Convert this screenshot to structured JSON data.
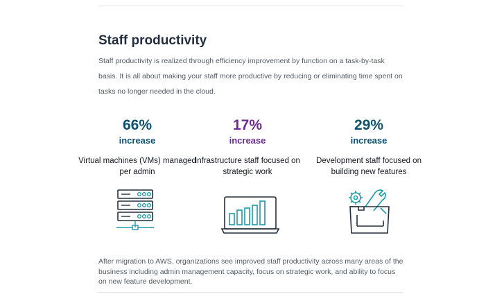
{
  "section": {
    "heading": "Staff productivity",
    "intro": "Staff productivity is realized through efficiency improvement by function on a task-by-task basis. It is all about making your staff more productive by reducing or eliminating time spent on tasks no longer needed in the cloud."
  },
  "stats": [
    {
      "value": "66%",
      "suffix": "increase",
      "description": "Virtual machines (VMs) managed per admin",
      "color": "#0e5271",
      "icon": "server-rack-icon"
    },
    {
      "value": "17%",
      "suffix": "increase",
      "description": "Infrastructure staff focused on strategic work",
      "color": "#6b2c91",
      "icon": "laptop-bar-chart-icon"
    },
    {
      "value": "29%",
      "suffix": "increase",
      "description": "Development staff focused on building new features",
      "color": "#0e5271",
      "icon": "tools-toolbox-icon"
    }
  ],
  "footer": {
    "text": "After migration to AWS, organizations see improved staff productivity across many areas of the business including admin management capacity, focus on strategic work, and ability to focus on new feature development."
  },
  "colors": {
    "accent_teal": "#0e5271",
    "accent_purple": "#6b2c91",
    "icon_teal": "#1b9aaa",
    "icon_dark": "#232f3e"
  }
}
